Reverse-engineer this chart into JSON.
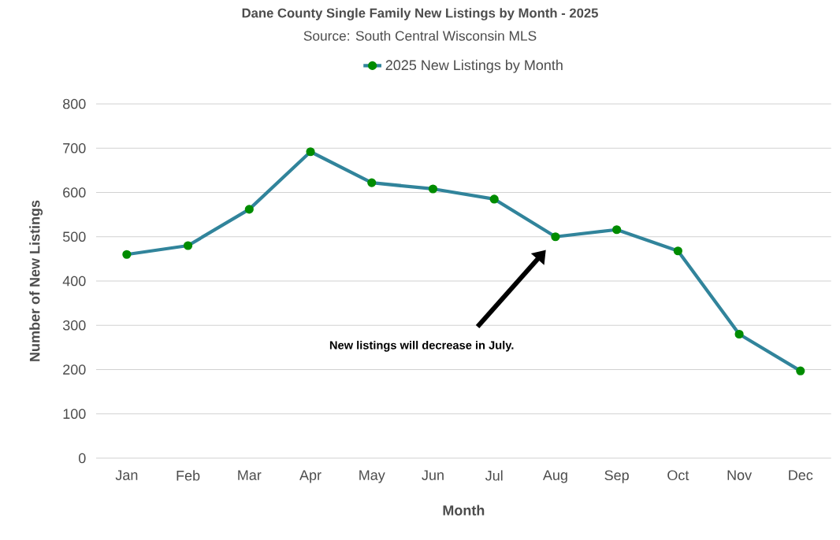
{
  "chart_data": {
    "type": "line",
    "title": "Dane County Single Family New Listings by Month - 2025",
    "subtitle": "Source: South Central Wisconsin MLS",
    "xlabel": "Month",
    "ylabel": "Number of New Listings",
    "categories": [
      "Jan",
      "Feb",
      "Mar",
      "Apr",
      "May",
      "Jun",
      "Jul",
      "Aug",
      "Sep",
      "Oct",
      "Nov",
      "Dec"
    ],
    "series": [
      {
        "name": "2025 New Listings by Month",
        "color": "#31849b",
        "values": [
          460,
          480,
          562,
          692,
          622,
          608,
          585,
          500,
          516,
          468,
          280,
          197
        ]
      }
    ],
    "ylim": [
      0,
      800
    ],
    "yticks": [
      0,
      100,
      200,
      300,
      400,
      500,
      600,
      700,
      800
    ],
    "grid": "y",
    "legend": "top",
    "marker": "circle",
    "line_style": "solid",
    "annotations": [
      "New listings will decrease in July."
    ]
  }
}
